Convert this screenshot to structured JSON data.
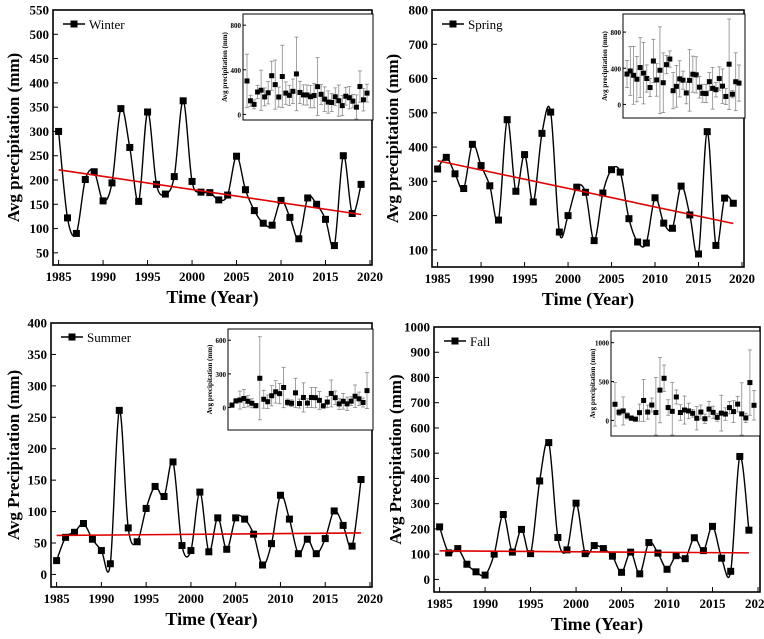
{
  "chart_data": [
    {
      "type": "line",
      "legend": "Winter",
      "legend_position": "top-left",
      "xlabel": "Time (Year)",
      "ylabel": "Avg precipitation (mm)",
      "x": [
        1985,
        1986,
        1987,
        1988,
        1989,
        1990,
        1991,
        1992,
        1993,
        1994,
        1995,
        1996,
        1997,
        1998,
        1999,
        2000,
        2001,
        2002,
        2003,
        2004,
        2005,
        2006,
        2007,
        2008,
        2009,
        2010,
        2011,
        2012,
        2013,
        2014,
        2015,
        2016,
        2017,
        2018,
        2019
      ],
      "values": [
        300,
        122,
        90,
        201,
        217,
        157,
        194,
        347,
        267,
        156,
        340,
        191,
        171,
        207,
        363,
        197,
        175,
        174,
        159,
        169,
        249,
        180,
        137,
        111,
        107,
        158,
        123,
        79,
        163,
        150,
        119,
        65,
        250,
        131,
        191
      ],
      "trend": [
        221,
        129
      ],
      "xlim": [
        1985,
        2020
      ],
      "ylim": [
        25,
        550
      ],
      "xticks": [
        1985,
        1990,
        1995,
        2000,
        2005,
        2010,
        2015,
        2020
      ],
      "yticks": [
        50,
        100,
        150,
        200,
        250,
        300,
        350,
        400,
        450,
        500,
        550
      ],
      "inset": {
        "ylabel": "Avg precipitation (mm)",
        "ylim": [
          -50,
          900
        ],
        "yticks": [
          0,
          400,
          800
        ],
        "errors": [
          240,
          50,
          40,
          60,
          180,
          80,
          100,
          130,
          220,
          90,
          280,
          100,
          90,
          110,
          330,
          100,
          90,
          90,
          100,
          110,
          260,
          90,
          110,
          100,
          80,
          80,
          140,
          90,
          80,
          100,
          60,
          110,
          140,
          100,
          80
        ]
      }
    },
    {
      "type": "line",
      "legend": "Spring",
      "legend_position": "top-left",
      "xlabel": "Time (Year)",
      "ylabel": "Avg precipitation (mm)",
      "x": [
        1985,
        1986,
        1987,
        1988,
        1989,
        1990,
        1991,
        1992,
        1993,
        1994,
        1995,
        1996,
        1997,
        1998,
        1999,
        2000,
        2001,
        2002,
        2003,
        2004,
        2005,
        2006,
        2007,
        2008,
        2009,
        2010,
        2011,
        2012,
        2013,
        2014,
        2015,
        2016,
        2017,
        2018,
        2019
      ],
      "values": [
        336,
        370,
        322,
        279,
        408,
        346,
        287,
        187,
        480,
        271,
        378,
        240,
        440,
        502,
        152,
        200,
        283,
        268,
        127,
        266,
        334,
        327,
        191,
        123,
        120,
        252,
        178,
        163,
        286,
        202,
        88,
        445,
        113,
        251,
        236
      ],
      "trend": [
        360,
        177
      ],
      "xlim": [
        1985,
        2020
      ],
      "ylim": [
        50,
        800
      ],
      "xticks": [
        1985,
        1990,
        1995,
        2000,
        2005,
        2010,
        2015,
        2020
      ],
      "yticks": [
        100,
        200,
        300,
        400,
        500,
        600,
        700,
        800
      ],
      "inset": {
        "ylabel": "Avg precipitation (mm)",
        "ylim": [
          -150,
          1000
        ],
        "yticks": [
          0,
          400,
          800
        ],
        "errors": [
          150,
          270,
          320,
          250,
          330,
          340,
          150,
          100,
          240,
          180,
          480,
          330,
          100,
          90,
          200,
          230,
          200,
          100,
          120,
          340,
          200,
          200,
          120,
          100,
          100,
          100,
          230,
          80,
          130,
          190,
          90,
          500,
          40,
          320,
          200
        ]
      }
    },
    {
      "type": "line",
      "legend": "Summer",
      "legend_position": "top-left",
      "xlabel": "Time (Year)",
      "ylabel": "Avg Precipitation (mm)",
      "x": [
        1985,
        1986,
        1987,
        1988,
        1989,
        1990,
        1991,
        1992,
        1993,
        1994,
        1995,
        1996,
        1997,
        1998,
        1999,
        2000,
        2001,
        2002,
        2003,
        2004,
        2005,
        2006,
        2007,
        2008,
        2009,
        2010,
        2011,
        2012,
        2013,
        2014,
        2015,
        2016,
        2017,
        2018,
        2019
      ],
      "values": [
        22,
        59,
        67,
        81,
        56,
        38,
        17,
        261,
        74,
        52,
        105,
        140,
        124,
        179,
        46,
        38,
        131,
        36,
        90,
        40,
        90,
        88,
        64,
        15,
        49,
        126,
        88,
        33,
        56,
        33,
        57,
        101,
        78,
        45,
        151
      ],
      "trend": [
        62,
        66
      ],
      "xlim": [
        1985,
        2020
      ],
      "ylim": [
        -20,
        400
      ],
      "xticks": [
        1985,
        1990,
        1995,
        2000,
        2005,
        2010,
        2015,
        2020
      ],
      "yticks": [
        0,
        50,
        100,
        150,
        200,
        250,
        300,
        350,
        400
      ],
      "inset": {
        "ylabel": "Avg precipitation (mm)",
        "ylim": [
          -200,
          700
        ],
        "yticks": [
          0,
          300,
          600
        ],
        "errors": [
          20,
          20,
          80,
          80,
          50,
          40,
          20,
          370,
          80,
          60,
          90,
          100,
          90,
          180,
          30,
          30,
          130,
          40,
          130,
          40,
          90,
          90,
          80,
          20,
          50,
          120,
          60,
          50,
          70,
          60,
          40,
          100,
          60,
          40,
          160
        ]
      }
    },
    {
      "type": "line",
      "legend": "Fall",
      "legend_position": "top-left",
      "xlabel": "Time (Year)",
      "ylabel": "Avg Precipitation (mm)",
      "x": [
        1985,
        1986,
        1987,
        1988,
        1989,
        1990,
        1991,
        1992,
        1993,
        1994,
        1995,
        1996,
        1997,
        1998,
        1999,
        2000,
        2001,
        2002,
        2003,
        2004,
        2005,
        2006,
        2007,
        2008,
        2009,
        2010,
        2011,
        2012,
        2013,
        2014,
        2015,
        2016,
        2017,
        2018,
        2019
      ],
      "values": [
        208,
        105,
        122,
        60,
        30,
        17,
        100,
        257,
        108,
        198,
        102,
        390,
        542,
        166,
        117,
        302,
        102,
        134,
        122,
        92,
        28,
        108,
        22,
        146,
        104,
        40,
        94,
        82,
        165,
        114,
        210,
        84,
        32,
        487,
        195
      ],
      "trend": [
        113,
        105
      ],
      "xlim": [
        1985,
        2020
      ],
      "ylim": [
        -50,
        1000
      ],
      "xticks": [
        1985,
        1990,
        1995,
        2000,
        2005,
        2010,
        2015,
        2020
      ],
      "yticks": [
        0,
        100,
        200,
        300,
        400,
        500,
        600,
        700,
        800,
        900,
        1000
      ],
      "inset": {
        "ylabel": "Avg precipitation (mm)",
        "ylim": [
          -200,
          1150
        ],
        "yticks": [
          0,
          500,
          1000
        ],
        "errors": [
          280,
          40,
          180,
          40,
          30,
          20,
          110,
          270,
          90,
          90,
          450,
          420,
          170,
          100,
          370,
          90,
          100,
          180,
          100,
          50,
          150,
          90,
          60,
          100,
          80,
          50,
          230,
          80,
          80,
          140,
          100,
          400,
          60,
          420,
          190
        ]
      }
    }
  ],
  "colors": {
    "series": "#000000",
    "trend": "#e00000",
    "error_bars": "#888888"
  }
}
